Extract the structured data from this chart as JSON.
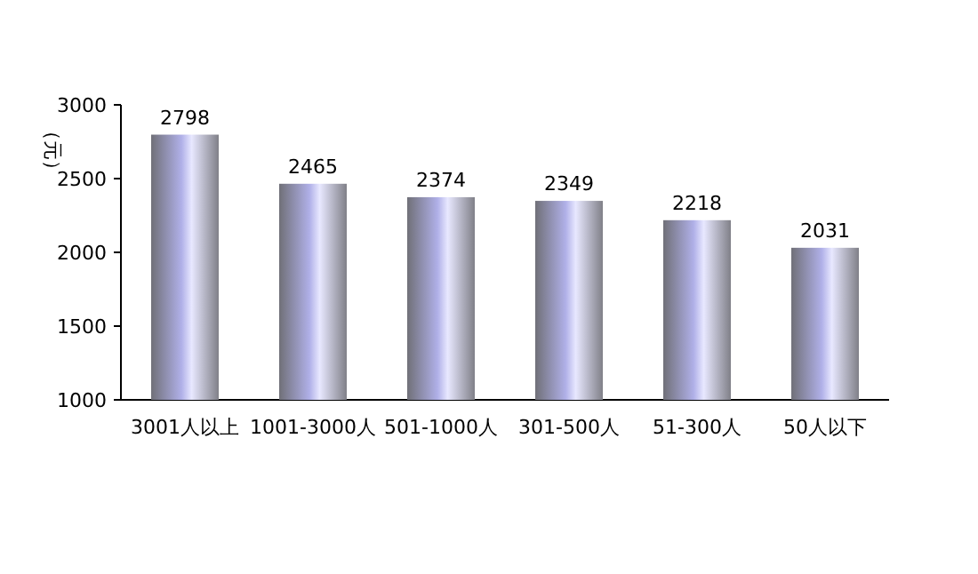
{
  "chart_data": {
    "type": "bar",
    "ylabel": "（元）",
    "categories": [
      "3001人以上",
      "1001-3000人",
      "501-1000人",
      "301-500人",
      "51-300人",
      "50人以下"
    ],
    "values": [
      2798,
      2465,
      2374,
      2349,
      2218,
      2031
    ],
    "color": "#b0b0e8",
    "ylim": [
      1000,
      3000
    ],
    "yticks": [
      1000,
      1500,
      2000,
      2500,
      3000
    ],
    "data_labels": true
  }
}
